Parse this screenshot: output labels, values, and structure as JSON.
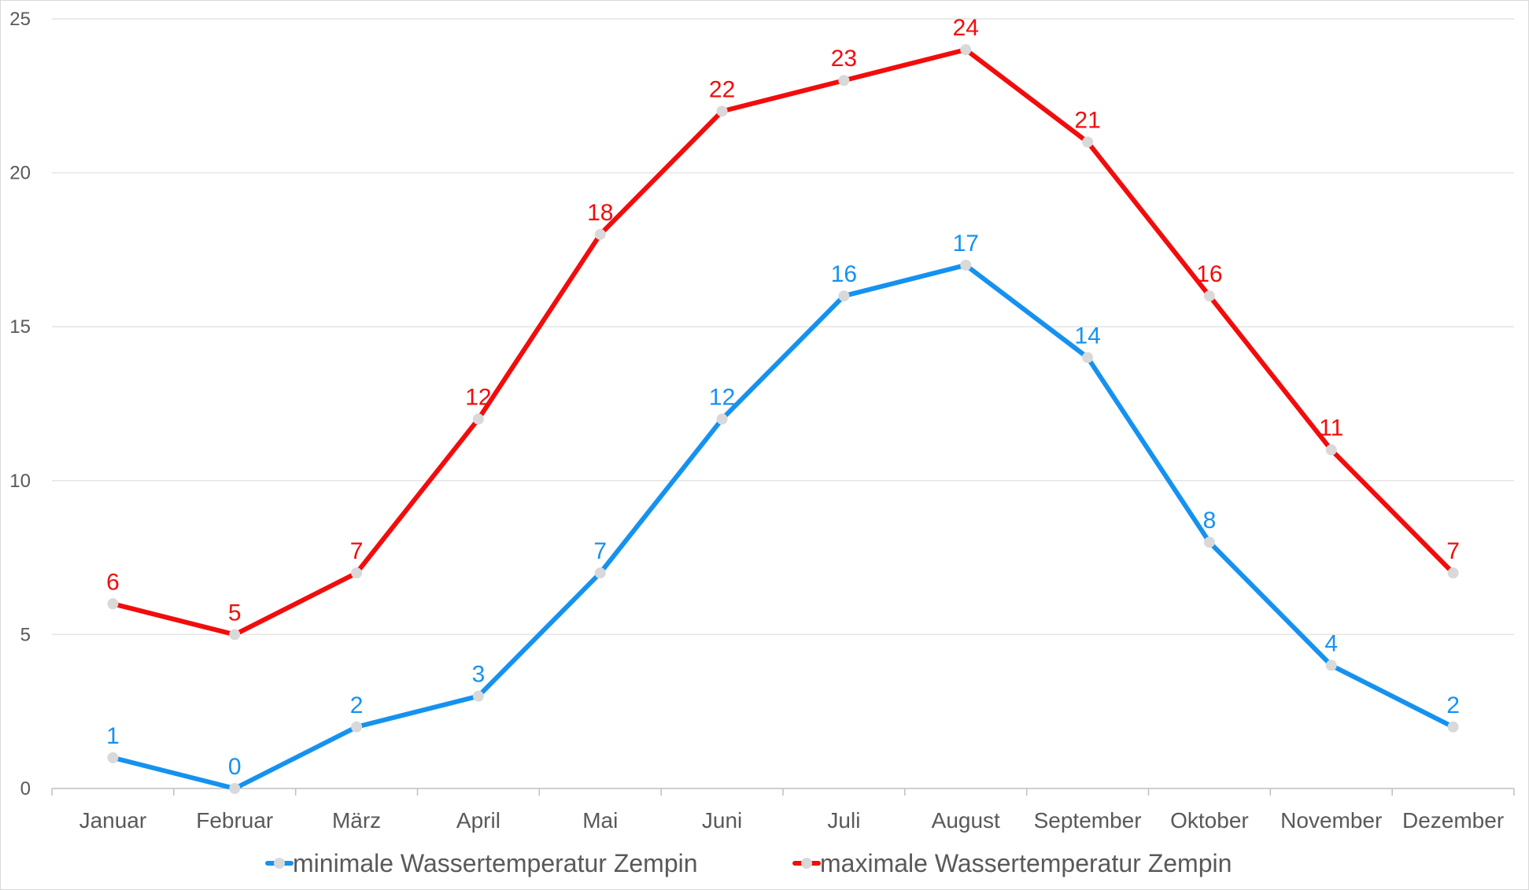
{
  "chart_data": {
    "type": "line",
    "title": "",
    "xlabel": "",
    "ylabel": "",
    "categories": [
      "Januar",
      "Februar",
      "März",
      "April",
      "Mai",
      "Juni",
      "Juli",
      "August",
      "September",
      "Oktober",
      "November",
      "Dezember"
    ],
    "ylim": [
      0,
      25
    ],
    "yticks": [
      0,
      5,
      10,
      15,
      20,
      25
    ],
    "grid": true,
    "legend": "bottom",
    "series": [
      {
        "name": "minimale Wassertemperatur Zempin",
        "color": "#1592F0",
        "values": [
          1,
          0,
          2,
          3,
          7,
          12,
          16,
          17,
          14,
          8,
          4,
          2
        ]
      },
      {
        "name": "maximale Wassertemperatur Zempin",
        "color": "#F20C0C",
        "values": [
          6,
          5,
          7,
          12,
          18,
          22,
          23,
          24,
          21,
          16,
          11,
          7
        ]
      }
    ],
    "marker_color": "#D9D9D9"
  }
}
